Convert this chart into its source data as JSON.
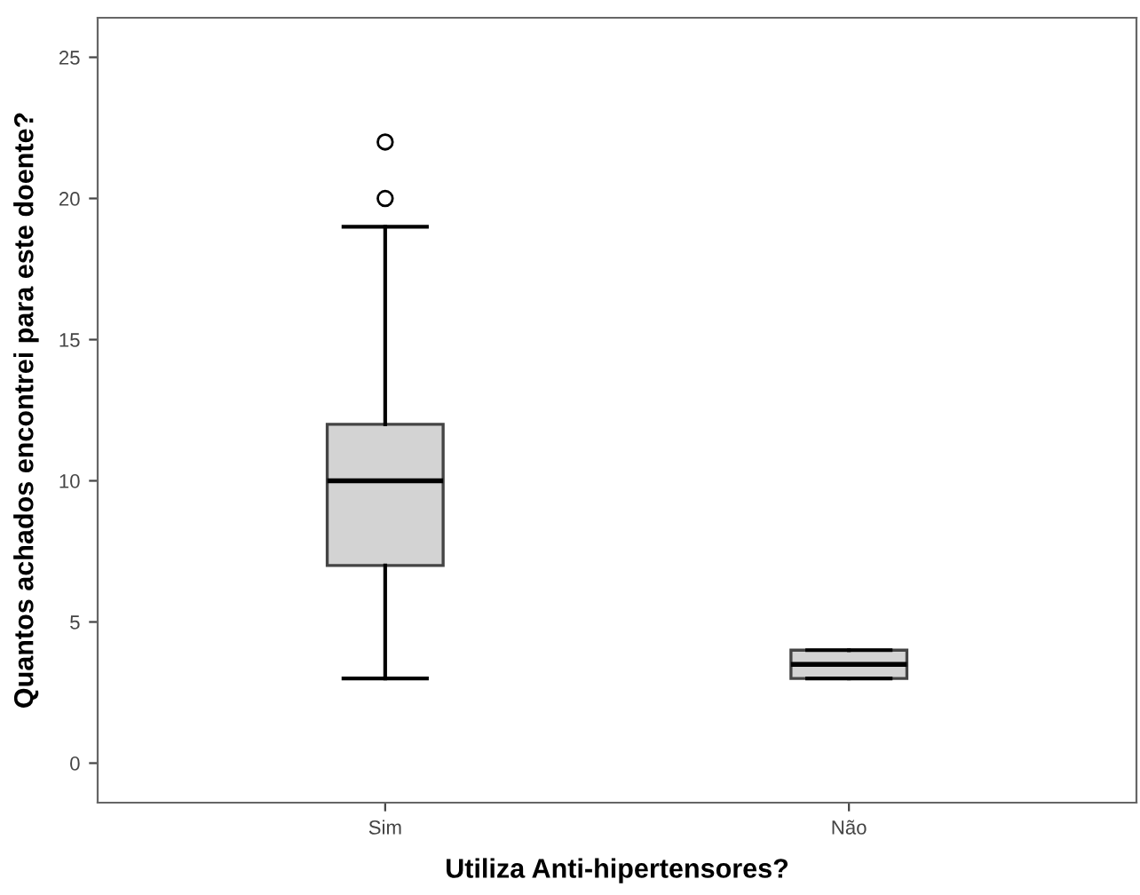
{
  "chart_data": {
    "type": "box",
    "xlabel": "Utiliza Anti-hipertensores?",
    "ylabel": "Quantos achados encontrei para este doente?",
    "categories": [
      "Sim",
      "Não"
    ],
    "boxes": [
      {
        "low": 3,
        "q1": 7,
        "median": 10,
        "q3": 12,
        "high": 19,
        "outliers": [
          20,
          22
        ]
      },
      {
        "low": 3,
        "q1": 3,
        "median": 3.5,
        "q3": 4,
        "high": 4
      }
    ],
    "color": "#d3d3d3",
    "ylim": [
      -1.4,
      26.4
    ],
    "yticks": [
      0,
      5,
      10,
      15,
      20,
      25
    ],
    "grid": false,
    "legend": false
  }
}
